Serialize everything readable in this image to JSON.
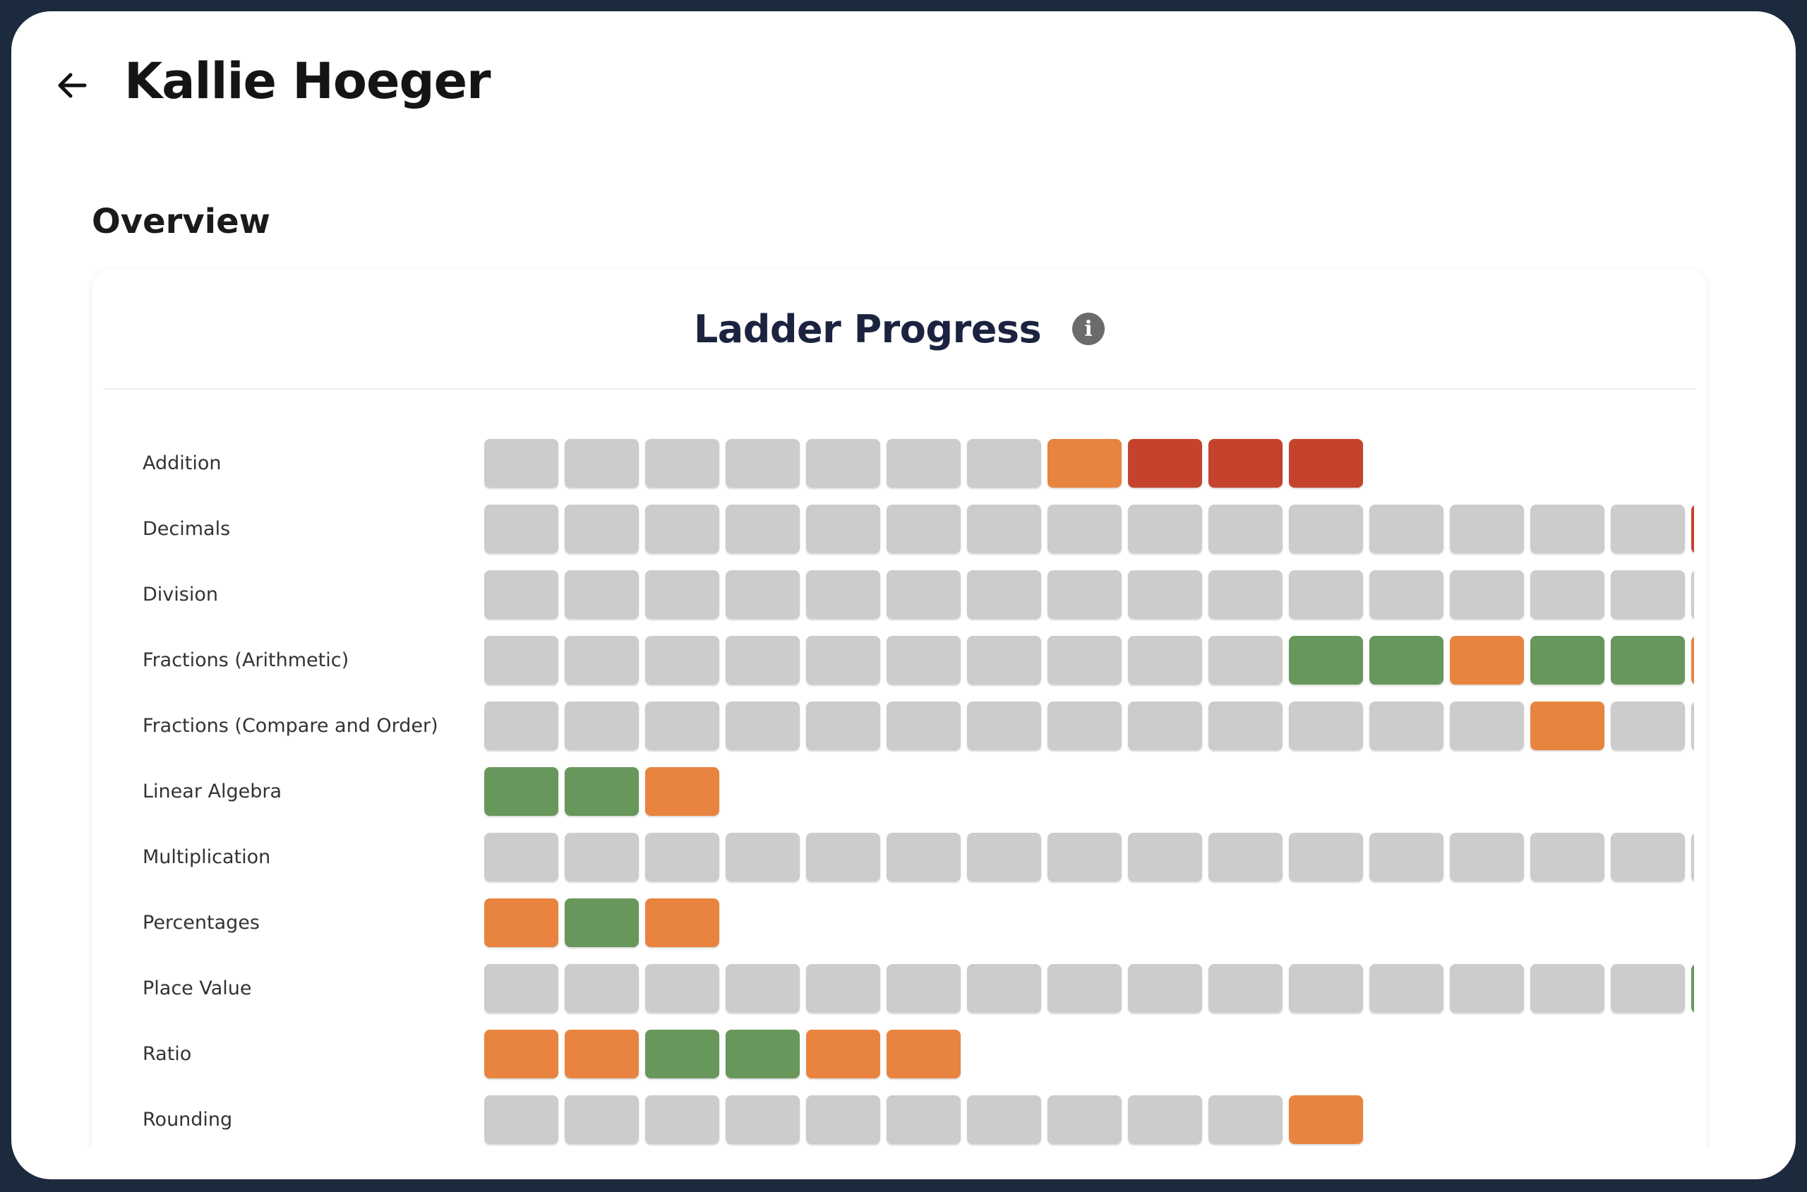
{
  "header": {
    "title": "Kallie Hoeger",
    "back_icon": "arrow-left-icon"
  },
  "section_title": "Overview",
  "card": {
    "title": "Ladder Progress",
    "info_icon": "info-icon",
    "info_glyph": "i"
  },
  "colors": {
    "G": "#cccccc",
    "O": "#e8843f",
    "R": "#c5432d",
    "N": "#68975b"
  },
  "legend_codes": {
    "G": "not-attempted",
    "O": "in-progress",
    "R": "struggling",
    "N": "mastered"
  },
  "rows": [
    {
      "label": "Addition",
      "cells": [
        "G",
        "G",
        "G",
        "G",
        "G",
        "G",
        "G",
        "O",
        "R",
        "R",
        "R"
      ]
    },
    {
      "label": "Decimals",
      "cells": [
        "G",
        "G",
        "G",
        "G",
        "G",
        "G",
        "G",
        "G",
        "G",
        "G",
        "G",
        "G",
        "G",
        "G",
        "G",
        "R"
      ]
    },
    {
      "label": "Division",
      "cells": [
        "G",
        "G",
        "G",
        "G",
        "G",
        "G",
        "G",
        "G",
        "G",
        "G",
        "G",
        "G",
        "G",
        "G",
        "G",
        "G"
      ]
    },
    {
      "label": "Fractions (Arithmetic)",
      "cells": [
        "G",
        "G",
        "G",
        "G",
        "G",
        "G",
        "G",
        "G",
        "G",
        "G",
        "N",
        "N",
        "O",
        "N",
        "N",
        "O"
      ]
    },
    {
      "label": "Fractions (Compare and Order)",
      "cells": [
        "G",
        "G",
        "G",
        "G",
        "G",
        "G",
        "G",
        "G",
        "G",
        "G",
        "G",
        "G",
        "G",
        "O",
        "G",
        "G"
      ]
    },
    {
      "label": "Linear Algebra",
      "cells": [
        "N",
        "N",
        "O"
      ]
    },
    {
      "label": "Multiplication",
      "cells": [
        "G",
        "G",
        "G",
        "G",
        "G",
        "G",
        "G",
        "G",
        "G",
        "G",
        "G",
        "G",
        "G",
        "G",
        "G",
        "G"
      ]
    },
    {
      "label": "Percentages",
      "cells": [
        "O",
        "N",
        "O"
      ]
    },
    {
      "label": "Place Value",
      "cells": [
        "G",
        "G",
        "G",
        "G",
        "G",
        "G",
        "G",
        "G",
        "G",
        "G",
        "G",
        "G",
        "G",
        "G",
        "G",
        "N"
      ]
    },
    {
      "label": "Ratio",
      "cells": [
        "O",
        "O",
        "N",
        "N",
        "O",
        "O"
      ]
    },
    {
      "label": "Rounding",
      "cells": [
        "G",
        "G",
        "G",
        "G",
        "G",
        "G",
        "G",
        "G",
        "G",
        "G",
        "O"
      ]
    }
  ]
}
